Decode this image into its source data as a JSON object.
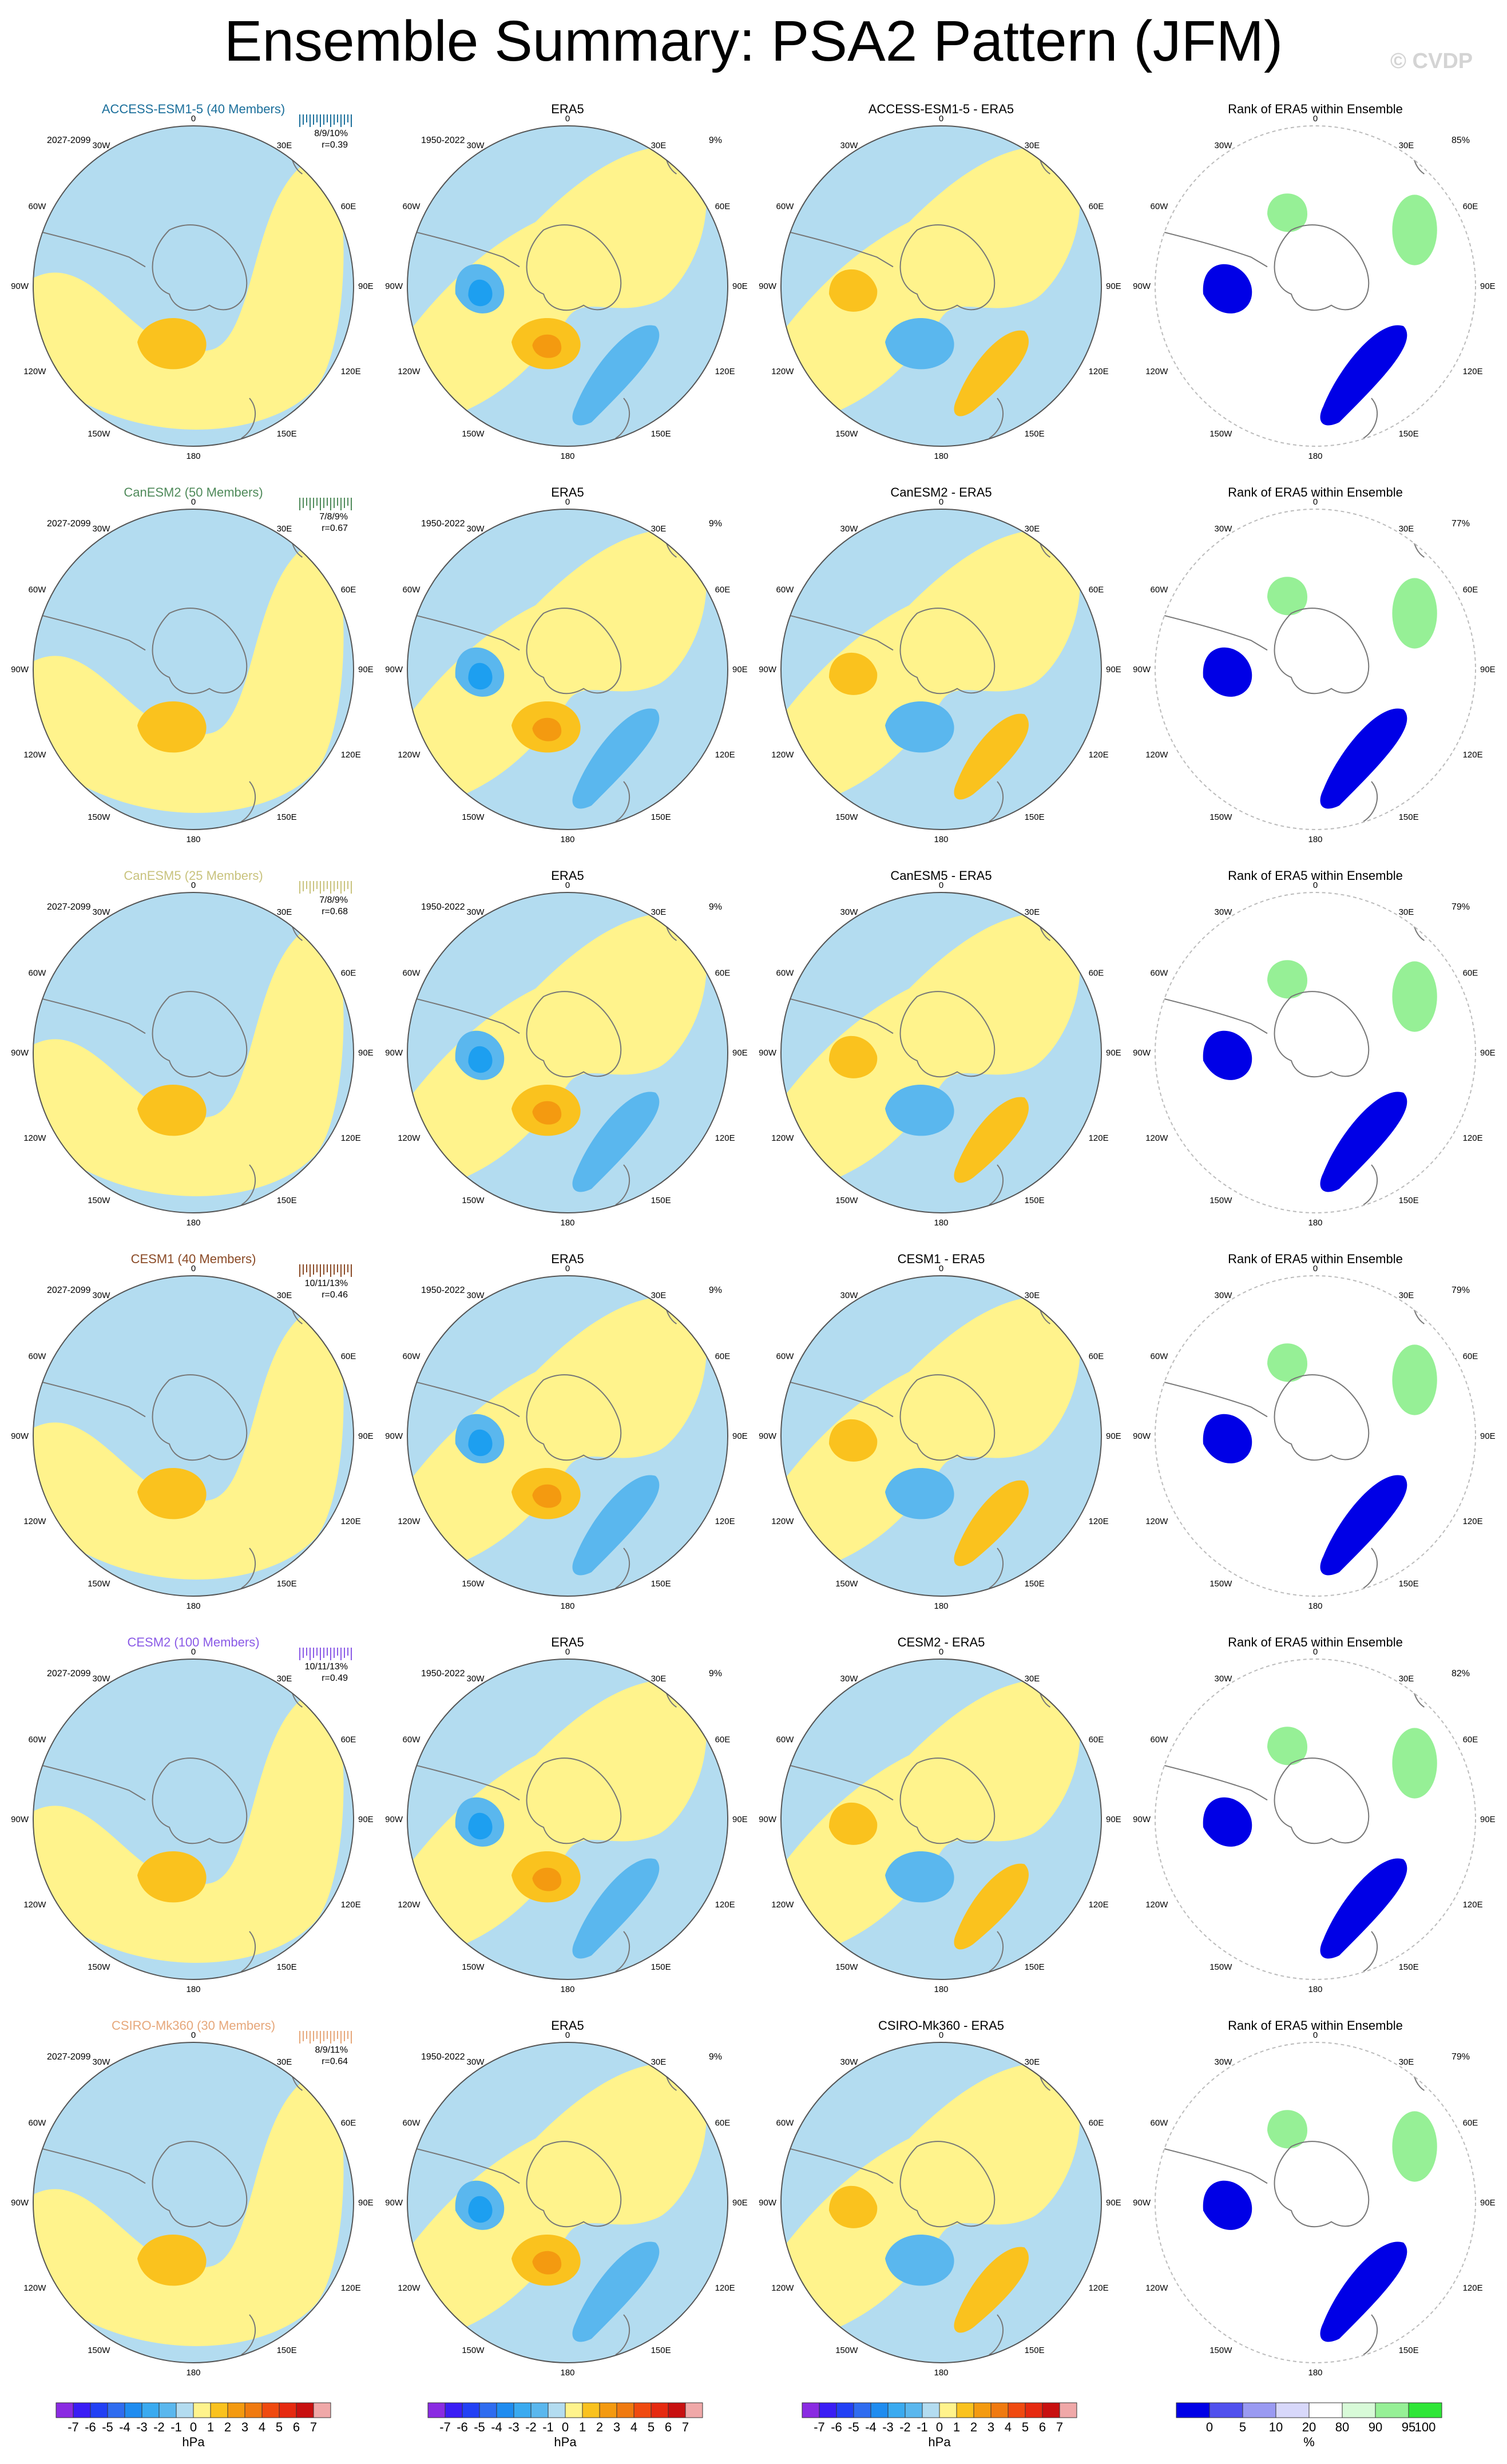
{
  "title": "Ensemble Summary: PSA2 Pattern (JFM)",
  "watermark": "© CVDP",
  "common": {
    "era5_title": "ERA5",
    "obs_period": "1950-2022",
    "model_period": "2027-2099",
    "obs_variance": "9%",
    "rank_title": "Rank of ERA5 within Ensemble",
    "top_label": "0",
    "bottom_label": "180",
    "longitude_labels": [
      "30W",
      "30E",
      "60W",
      "60E",
      "90W",
      "90E",
      "120W",
      "120E",
      "150W",
      "150E"
    ]
  },
  "colors": {
    "fill_blue_light": "#b3dcf0",
    "fill_yellow_light": "#fff38c",
    "fill_blue_mid": "#5ab7ee",
    "fill_blue_dark": "#1d9ff0",
    "fill_orange_mid": "#fac21e",
    "fill_orange_dark": "#f49a10",
    "coast": "#777777",
    "rank_blue": "#0000e6",
    "rank_green": "#2fe637"
  },
  "chart_data": [
    {
      "type": "heatmap",
      "model": "ACCESS-ESM1-5",
      "ensemble_title": "ACCESS-ESM1-5 (40 Members)",
      "members": 40,
      "title_color": "#1b6f9b",
      "variance": "8/9/10%",
      "pattern_corr": "r=0.39",
      "diff_title": "ACCESS-ESM1-5 - ERA5",
      "rank_pct": "85%"
    },
    {
      "type": "heatmap",
      "model": "CanESM2",
      "ensemble_title": "CanESM2 (50 Members)",
      "members": 50,
      "title_color": "#4f8a5a",
      "variance": "7/8/9%",
      "pattern_corr": "r=0.67",
      "diff_title": "CanESM2 - ERA5",
      "rank_pct": "77%"
    },
    {
      "type": "heatmap",
      "model": "CanESM5",
      "ensemble_title": "CanESM5 (25 Members)",
      "members": 25,
      "title_color": "#c9c37e",
      "variance": "7/8/9%",
      "pattern_corr": "r=0.68",
      "diff_title": "CanESM5 - ERA5",
      "rank_pct": "79%"
    },
    {
      "type": "heatmap",
      "model": "CESM1",
      "ensemble_title": "CESM1 (40 Members)",
      "members": 40,
      "title_color": "#8a4a26",
      "variance": "10/11/13%",
      "pattern_corr": "r=0.46",
      "diff_title": "CESM1 - ERA5",
      "rank_pct": "79%"
    },
    {
      "type": "heatmap",
      "model": "CESM2",
      "ensemble_title": "CESM2 (100 Members)",
      "members": 100,
      "title_color": "#8a5ae6",
      "variance": "10/11/13%",
      "pattern_corr": "r=0.49",
      "diff_title": "CESM2 - ERA5",
      "rank_pct": "82%"
    },
    {
      "type": "heatmap",
      "model": "CSIRO-Mk360",
      "ensemble_title": "CSIRO-Mk360 (30 Members)",
      "members": 30,
      "title_color": "#e6a77a",
      "variance": "8/9/11%",
      "pattern_corr": "r=0.64",
      "diff_title": "CSIRO-Mk360 - ERA5",
      "rank_pct": "79%"
    }
  ],
  "colorbar_hpa": {
    "unit": "hPa",
    "labels": [
      "-7",
      "-6",
      "-5",
      "-4",
      "-3",
      "-2",
      "-1",
      "0",
      "1",
      "2",
      "3",
      "4",
      "5",
      "6",
      "7"
    ],
    "colors": [
      "#8a2be2",
      "#3a1df5",
      "#2240f5",
      "#2f6cf0",
      "#1f8cf0",
      "#3aaaf0",
      "#5ab7ee",
      "#b3dcf0",
      "#fff38c",
      "#fac21e",
      "#f49a10",
      "#f07a10",
      "#f04a10",
      "#e62a10",
      "#c81010",
      "#f0a8a8"
    ]
  },
  "colorbar_rank": {
    "unit": "%",
    "labels": [
      "0",
      "5",
      "10",
      "20",
      "80",
      "90",
      "95",
      "100"
    ],
    "colors": [
      "#0000e6",
      "#5050ee",
      "#9a9af2",
      "#d8d8fa",
      "#ffffff",
      "#d8fad8",
      "#96f096",
      "#2fe637"
    ]
  }
}
